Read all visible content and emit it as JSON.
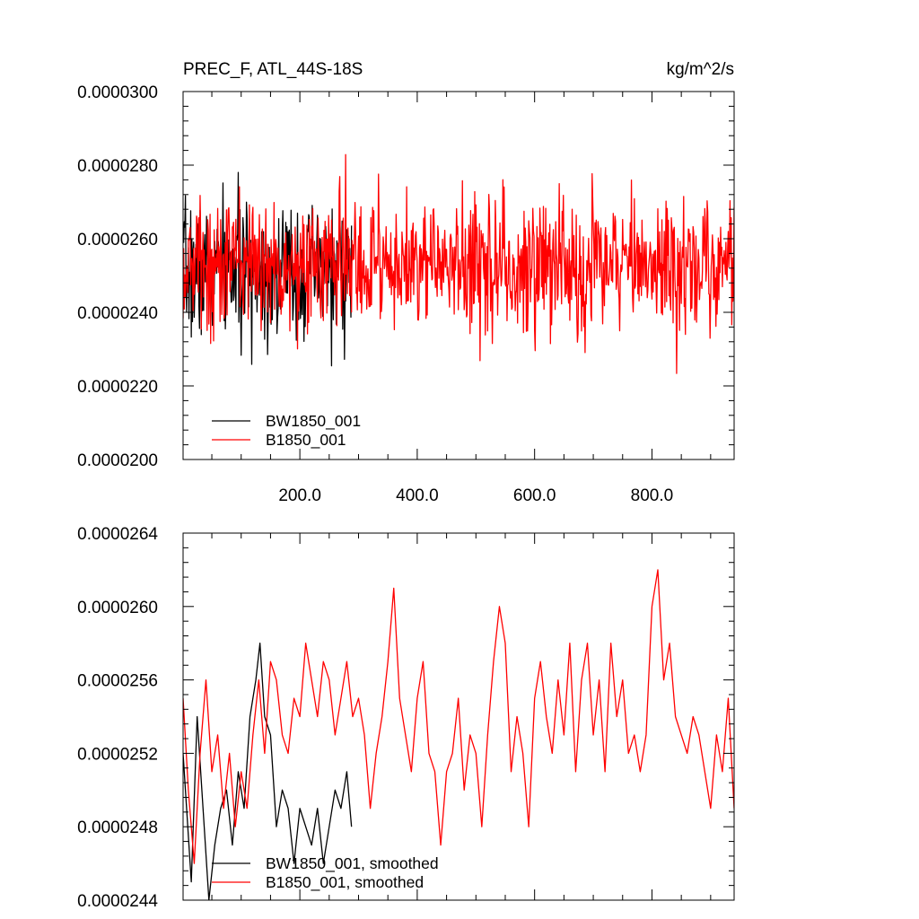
{
  "panel_title_left": "PREC_F, ATL_44S-18S",
  "panel_title_right": "kg/m^2/s",
  "chart_data": [
    {
      "type": "line",
      "title": "PREC_F, ATL_44S-18S",
      "units": "kg/m^2/s",
      "xlabel": "",
      "ylabel": "",
      "xlim": [
        1,
        940
      ],
      "ylim": [
        2e-05,
        3e-05
      ],
      "x_ticks": [
        200,
        400,
        600,
        800
      ],
      "x_tick_labels": [
        "200.0",
        "400.0",
        "600.0",
        "800.0"
      ],
      "y_ticks": [
        2e-05,
        2.2e-05,
        2.4e-05,
        2.6e-05,
        2.8e-05,
        3e-05
      ],
      "y_tick_labels": [
        "0.0000200",
        "0.0000220",
        "0.0000240",
        "0.0000260",
        "0.0000280",
        "0.0000300"
      ],
      "grid": false,
      "legend_position": "bottom-left",
      "series": [
        {
          "name": "BW1850_001",
          "color": "#000000",
          "x_start": 1,
          "x_step": 1,
          "length": 288,
          "mean": 2.51e-05,
          "std": 9e-07,
          "min": 2.23e-05,
          "max": 2.78e-05,
          "seed": 7
        },
        {
          "name": "B1850_001",
          "color": "#ff0000",
          "x_start": 1,
          "x_step": 1,
          "length": 940,
          "mean": 2.53e-05,
          "std": 9e-07,
          "min": 2.16e-05,
          "max": 2.89e-05,
          "seed": 13
        }
      ]
    },
    {
      "type": "line",
      "title": "",
      "xlabel": "",
      "ylabel": "",
      "xlim": [
        1,
        940
      ],
      "ylim": [
        2.44e-05,
        2.64e-05
      ],
      "x_ticks": [
        200,
        400,
        600,
        800
      ],
      "x_tick_labels": [],
      "y_ticks": [
        2.44e-05,
        2.48e-05,
        2.52e-05,
        2.56e-05,
        2.6e-05,
        2.64e-05
      ],
      "y_tick_labels": [
        "0.0000244",
        "0.0000248",
        "0.0000252",
        "0.0000256",
        "0.0000260",
        "0.0000264"
      ],
      "grid": false,
      "legend_position": "bottom-left",
      "series": [
        {
          "name": "BW1850_001, smoothed",
          "color": "#000000",
          "x": [
            1,
            15,
            25,
            35,
            45,
            55,
            65,
            75,
            85,
            95,
            105,
            115,
            125,
            132,
            140,
            150,
            160,
            170,
            180,
            190,
            200,
            210,
            220,
            230,
            240,
            250,
            260,
            270,
            280,
            288
          ],
          "y": [
            2.52e-05,
            2.45e-05,
            2.54e-05,
            2.49e-05,
            2.44e-05,
            2.47e-05,
            2.49e-05,
            2.5e-05,
            2.47e-05,
            2.51e-05,
            2.49e-05,
            2.54e-05,
            2.56e-05,
            2.58e-05,
            2.54e-05,
            2.53e-05,
            2.48e-05,
            2.5e-05,
            2.49e-05,
            2.46e-05,
            2.49e-05,
            2.48e-05,
            2.47e-05,
            2.49e-05,
            2.46e-05,
            2.48e-05,
            2.5e-05,
            2.49e-05,
            2.51e-05,
            2.48e-05
          ]
        },
        {
          "name": "B1850_001, smoothed",
          "color": "#ff0000",
          "x": [
            1,
            10,
            20,
            30,
            40,
            50,
            60,
            70,
            80,
            90,
            100,
            110,
            120,
            130,
            140,
            150,
            160,
            170,
            180,
            190,
            200,
            210,
            220,
            230,
            240,
            250,
            260,
            270,
            280,
            290,
            300,
            310,
            320,
            330,
            340,
            350,
            360,
            370,
            380,
            390,
            400,
            410,
            420,
            430,
            440,
            450,
            460,
            470,
            480,
            490,
            500,
            510,
            520,
            530,
            540,
            550,
            560,
            570,
            580,
            590,
            600,
            610,
            620,
            630,
            640,
            650,
            660,
            670,
            680,
            690,
            700,
            710,
            720,
            730,
            740,
            750,
            760,
            770,
            780,
            790,
            800,
            810,
            820,
            830,
            840,
            850,
            860,
            870,
            880,
            890,
            900,
            910,
            920,
            930,
            940
          ],
          "y": [
            2.55e-05,
            2.5e-05,
            2.46e-05,
            2.52e-05,
            2.56e-05,
            2.51e-05,
            2.53e-05,
            2.49e-05,
            2.52e-05,
            2.48e-05,
            2.51e-05,
            2.49e-05,
            2.53e-05,
            2.56e-05,
            2.52e-05,
            2.57e-05,
            2.56e-05,
            2.53e-05,
            2.52e-05,
            2.55e-05,
            2.54e-05,
            2.58e-05,
            2.56e-05,
            2.54e-05,
            2.57e-05,
            2.56e-05,
            2.53e-05,
            2.55e-05,
            2.57e-05,
            2.54e-05,
            2.55e-05,
            2.53e-05,
            2.49e-05,
            2.52e-05,
            2.54e-05,
            2.57e-05,
            2.61e-05,
            2.55e-05,
            2.53e-05,
            2.51e-05,
            2.55e-05,
            2.57e-05,
            2.52e-05,
            2.51e-05,
            2.47e-05,
            2.51e-05,
            2.52e-05,
            2.55e-05,
            2.5e-05,
            2.53e-05,
            2.52e-05,
            2.48e-05,
            2.53e-05,
            2.57e-05,
            2.6e-05,
            2.58e-05,
            2.51e-05,
            2.54e-05,
            2.52e-05,
            2.48e-05,
            2.55e-05,
            2.57e-05,
            2.54e-05,
            2.52e-05,
            2.56e-05,
            2.53e-05,
            2.58e-05,
            2.51e-05,
            2.56e-05,
            2.58e-05,
            2.53e-05,
            2.56e-05,
            2.51e-05,
            2.58e-05,
            2.54e-05,
            2.56e-05,
            2.52e-05,
            2.53e-05,
            2.51e-05,
            2.53e-05,
            2.6e-05,
            2.62e-05,
            2.56e-05,
            2.58e-05,
            2.54e-05,
            2.53e-05,
            2.52e-05,
            2.54e-05,
            2.53e-05,
            2.51e-05,
            2.49e-05,
            2.53e-05,
            2.51e-05,
            2.55e-05,
            2.49e-05
          ]
        }
      ]
    }
  ]
}
